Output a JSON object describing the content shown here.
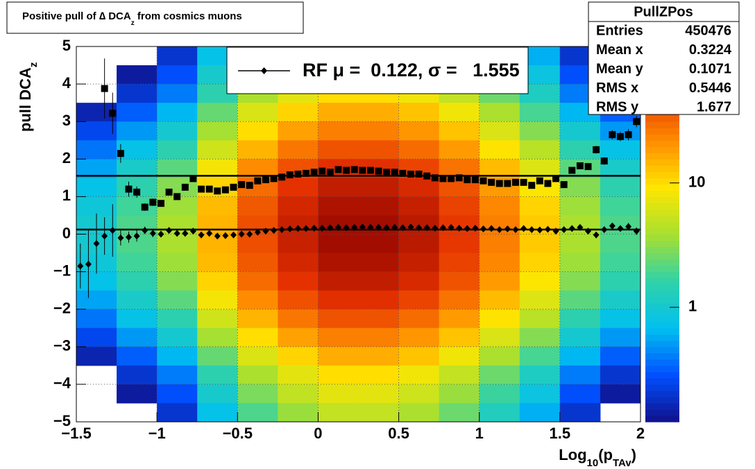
{
  "chart_data": {
    "type": "hist2d_profile",
    "title": [
      "Positive pull of ∆ DCA",
      "z",
      " from cosmics muons"
    ],
    "x_label": [
      "Log",
      "10",
      "(p",
      "TAv",
      ")"
    ],
    "y_label": [
      "pull DCA",
      "z"
    ],
    "xlim": [
      -1.5,
      2
    ],
    "ylim": [
      -5,
      5
    ],
    "xticks": [
      {
        "value": -1.5,
        "label": "−1.5"
      },
      {
        "value": -1,
        "label": "−1"
      },
      {
        "value": -0.5,
        "label": "−0.5"
      },
      0,
      0.5,
      1,
      1.5,
      2
    ],
    "yticks": [
      {
        "value": -5,
        "label": "−5"
      },
      {
        "value": -4,
        "label": "−4"
      },
      {
        "value": -3,
        "label": "−3"
      },
      {
        "value": -2,
        "label": "−2"
      },
      {
        "value": -1,
        "label": "−1"
      },
      0,
      1,
      2,
      3,
      4,
      5
    ],
    "grid": true,
    "zlim": [
      0.12,
      125
    ],
    "zscale": "log",
    "zticks": [
      1,
      10
    ],
    "palette": [
      "#10108a",
      "#0050ff",
      "#00c0f0",
      "#30d2a8",
      "#a8e030",
      "#ffe600",
      "#ff8c00",
      "#e63200",
      "#8c0000"
    ],
    "heatmap": {
      "xbins": [
        -1.5,
        -1.25,
        -1,
        -0.75,
        -0.5,
        -0.25,
        0,
        0.25,
        0.5,
        0.75,
        1,
        1.25,
        1.5,
        1.75,
        2
      ],
      "ybins": [
        5,
        4.5,
        4,
        3.5,
        3,
        2.5,
        2,
        1.5,
        1,
        0.5,
        0,
        -0.5,
        -1,
        -1.5,
        -2,
        -2.5,
        -3,
        -3.5,
        -4,
        -4.5,
        -5
      ],
      "z": [
        [
          0.05,
          0.1,
          0.2,
          0.75,
          2,
          3.5,
          5,
          5,
          4,
          2.5,
          1.25,
          0.6,
          0.2,
          0.1
        ],
        [
          0.07,
          0.14,
          0.28,
          1.05,
          2.8,
          4.9,
          7,
          7,
          5.6,
          3.5,
          1.75,
          0.84,
          0.28,
          0.14
        ],
        [
          0.1,
          0.2,
          0.4,
          1.5,
          4,
          7,
          10,
          10,
          8,
          5,
          2.5,
          1.2,
          0.4,
          0.2
        ],
        [
          0.16,
          0.32,
          0.64,
          2.4,
          6.4,
          11,
          16,
          16,
          13,
          8,
          4,
          1.9,
          0.64,
          0.32
        ],
        [
          0.25,
          0.5,
          1,
          3.8,
          10,
          18,
          25,
          25,
          20,
          13,
          6.3,
          3,
          1,
          0.5
        ],
        [
          0.38,
          0.76,
          1.5,
          5.7,
          15,
          27,
          38,
          38,
          30,
          19,
          9.5,
          4.6,
          1.5,
          0.76
        ],
        [
          0.55,
          1.1,
          2.2,
          8.3,
          22,
          39,
          55,
          55,
          44,
          28,
          14,
          6.6,
          2.2,
          1.1
        ],
        [
          0.75,
          1.5,
          3,
          11,
          30,
          53,
          75,
          75,
          60,
          38,
          19,
          9,
          3,
          1.5
        ],
        [
          0.9,
          1.8,
          3.6,
          14,
          36,
          63,
          90,
          90,
          72,
          45,
          23,
          11,
          3.6,
          1.8
        ],
        [
          1,
          2,
          4,
          15,
          40,
          70,
          100,
          100,
          80,
          50,
          25,
          12,
          4,
          2
        ],
        [
          1,
          2,
          4,
          15,
          40,
          70,
          100,
          100,
          80,
          50,
          25,
          12,
          4,
          2
        ],
        [
          0.9,
          1.8,
          3.6,
          14,
          36,
          63,
          90,
          90,
          72,
          45,
          23,
          11,
          3.6,
          1.8
        ],
        [
          0.75,
          1.5,
          3,
          11,
          30,
          53,
          75,
          75,
          60,
          38,
          19,
          9,
          3,
          1.5
        ],
        [
          0.55,
          1.1,
          2.2,
          8.3,
          22,
          39,
          55,
          55,
          44,
          28,
          14,
          6.6,
          2.2,
          1.1
        ],
        [
          0.38,
          0.76,
          1.5,
          5.7,
          15,
          27,
          38,
          38,
          30,
          19,
          9.5,
          4.6,
          1.5,
          0.76
        ],
        [
          0.25,
          0.5,
          1,
          3.8,
          10,
          18,
          25,
          25,
          20,
          13,
          6.3,
          3,
          1,
          0.5
        ],
        [
          0.16,
          0.32,
          0.64,
          2.4,
          6.4,
          11,
          16,
          16,
          13,
          8,
          4,
          1.9,
          0.64,
          0.32
        ],
        [
          0.1,
          0.2,
          0.4,
          1.5,
          4,
          7,
          10,
          10,
          8,
          5,
          2.5,
          1.2,
          0.4,
          0.2
        ],
        [
          0.07,
          0.14,
          0.28,
          1.05,
          2.8,
          4.9,
          7,
          7,
          5.6,
          3.5,
          1.75,
          0.84,
          0.28,
          0.14
        ],
        [
          0.05,
          0.1,
          0.2,
          0.75,
          2,
          3.5,
          5,
          5,
          4,
          2.5,
          1.25,
          0.6,
          0.2,
          0.1
        ]
      ]
    },
    "x": [
      -1.475,
      -1.425,
      -1.375,
      -1.325,
      -1.275,
      -1.225,
      -1.175,
      -1.125,
      -1.075,
      -1.025,
      -0.975,
      -0.925,
      -0.875,
      -0.825,
      -0.775,
      -0.725,
      -0.675,
      -0.625,
      -0.575,
      -0.525,
      -0.475,
      -0.425,
      -0.375,
      -0.325,
      -0.275,
      -0.225,
      -0.175,
      -0.125,
      -0.075,
      -0.025,
      0.025,
      0.075,
      0.125,
      0.175,
      0.225,
      0.275,
      0.325,
      0.375,
      0.425,
      0.475,
      0.525,
      0.575,
      0.625,
      0.675,
      0.725,
      0.775,
      0.825,
      0.875,
      0.925,
      0.975,
      1.025,
      1.075,
      1.125,
      1.175,
      1.225,
      1.275,
      1.325,
      1.375,
      1.425,
      1.475,
      1.525,
      1.575,
      1.625,
      1.675,
      1.725,
      1.775,
      1.825,
      1.875,
      1.925,
      1.975
    ],
    "series": [
      {
        "marker": "square",
        "color": "#000000",
        "fit": 1.555,
        "values": [
          null,
          null,
          null,
          3.88,
          3.22,
          2.15,
          1.2,
          1.12,
          0.72,
          0.85,
          0.82,
          1.12,
          1.0,
          1.25,
          1.48,
          1.2,
          1.2,
          1.15,
          1.18,
          1.25,
          1.32,
          1.3,
          1.42,
          1.45,
          1.48,
          1.52,
          1.58,
          1.6,
          1.62,
          1.65,
          1.68,
          1.65,
          1.72,
          1.7,
          1.72,
          1.7,
          1.7,
          1.68,
          1.65,
          1.65,
          1.62,
          1.6,
          1.6,
          1.55,
          1.5,
          1.48,
          1.48,
          1.5,
          1.45,
          1.45,
          1.42,
          1.38,
          1.35,
          1.35,
          1.38,
          1.38,
          1.3,
          1.42,
          1.35,
          1.48,
          1.32,
          1.7,
          1.82,
          1.8,
          2.25,
          1.95,
          2.65,
          2.6,
          2.65,
          3.0
        ],
        "errors": [
          null,
          null,
          null,
          0.8,
          0.55,
          0.25,
          0.2,
          0.15,
          0.1,
          0.1,
          0.06,
          0.06,
          0.05,
          0.05,
          0.05,
          0.04,
          0.04,
          0.04,
          0.04,
          0.04,
          0.04,
          0.04,
          0.04,
          0.04,
          0.04,
          0.04,
          0.04,
          0.04,
          0.04,
          0.04,
          0.04,
          0.04,
          0.04,
          0.04,
          0.04,
          0.04,
          0.04,
          0.04,
          0.04,
          0.04,
          0.04,
          0.04,
          0.04,
          0.04,
          0.04,
          0.04,
          0.04,
          0.04,
          0.04,
          0.04,
          0.04,
          0.04,
          0.04,
          0.04,
          0.04,
          0.04,
          0.05,
          0.05,
          0.05,
          0.05,
          0.06,
          0.06,
          0.07,
          0.08,
          0.1,
          0.1,
          0.12,
          0.12,
          0.15,
          0.15
        ]
      },
      {
        "marker": "diamond",
        "color": "#000000",
        "fit": 0.122,
        "values": [
          -0.85,
          -0.8,
          -0.25,
          -0.05,
          0.1,
          -0.1,
          -0.08,
          -0.05,
          0.1,
          0.02,
          0.0,
          0.1,
          0.02,
          0.02,
          0.08,
          -0.02,
          0.02,
          -0.05,
          -0.04,
          -0.02,
          0.0,
          0.0,
          0.05,
          0.08,
          0.1,
          0.12,
          0.14,
          0.15,
          0.15,
          0.16,
          0.16,
          0.17,
          0.18,
          0.17,
          0.18,
          0.19,
          0.18,
          0.18,
          0.17,
          0.18,
          0.17,
          0.19,
          0.17,
          0.17,
          0.16,
          0.17,
          0.18,
          0.16,
          0.15,
          0.16,
          0.14,
          0.15,
          0.12,
          0.14,
          0.12,
          0.15,
          0.12,
          0.11,
          0.13,
          0.08,
          0.12,
          0.15,
          0.18,
          0.08,
          -0.02,
          0.12,
          0.22,
          0.15,
          0.2,
          0.08
        ],
        "errors": [
          0.6,
          0.9,
          0.8,
          0.5,
          0.7,
          0.2,
          0.15,
          0.15,
          0.1,
          0.1,
          0.05,
          0.05,
          0.05,
          0.05,
          0.05,
          0.05,
          0.05,
          0.05,
          0.05,
          0.05,
          0.05,
          0.05,
          0.05,
          0.05,
          0.05,
          0.05,
          0.05,
          0.05,
          0.05,
          0.05,
          0.05,
          0.05,
          0.05,
          0.05,
          0.05,
          0.05,
          0.05,
          0.05,
          0.05,
          0.05,
          0.05,
          0.05,
          0.05,
          0.05,
          0.05,
          0.05,
          0.05,
          0.05,
          0.05,
          0.05,
          0.05,
          0.05,
          0.05,
          0.05,
          0.05,
          0.05,
          0.05,
          0.05,
          0.05,
          0.05,
          0.05,
          0.05,
          0.05,
          0.06,
          0.06,
          0.06,
          0.07,
          0.08,
          0.1,
          0.1
        ]
      }
    ],
    "legend": "RF μ =  0.122, σ =   1.555",
    "stats": {
      "title": "PullZPos",
      "rows": [
        [
          "Entries",
          450476
        ],
        [
          "Mean x",
          0.3224
        ],
        [
          "Mean y",
          0.1071
        ],
        [
          "RMS x",
          0.5446
        ],
        [
          "RMS y",
          1.677
        ]
      ]
    }
  }
}
